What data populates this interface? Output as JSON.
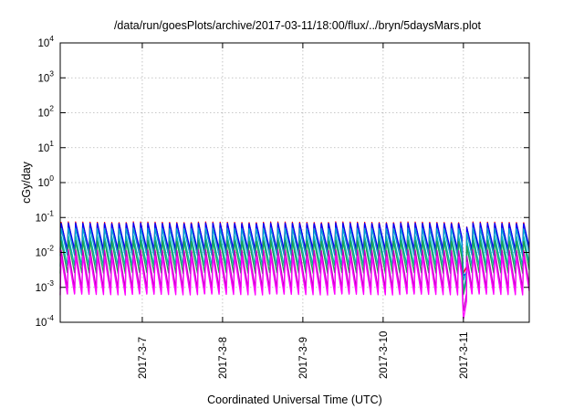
{
  "chart_data": {
    "type": "line",
    "title": "/data/run/goesPlots/archive/2017-03-11/18:00/flux/../bryn/5daysMars.plot",
    "xlabel": "Coordinated Universal Time (UTC)",
    "ylabel": "cGy/day",
    "y_scale": "log",
    "ylim": [
      0.0001,
      10000
    ],
    "x_range_days": [
      5.978,
      11.82
    ],
    "grid": true,
    "legend": "none",
    "y_ticks": [
      {
        "value": 0.0001,
        "base": "10",
        "exp": "-4"
      },
      {
        "value": 0.001,
        "base": "10",
        "exp": "-3"
      },
      {
        "value": 0.01,
        "base": "10",
        "exp": "-2"
      },
      {
        "value": 0.1,
        "base": "10",
        "exp": "-1"
      },
      {
        "value": 1,
        "base": "10",
        "exp": "0"
      },
      {
        "value": 10,
        "base": "10",
        "exp": "1"
      },
      {
        "value": 100,
        "base": "10",
        "exp": "2"
      },
      {
        "value": 1000,
        "base": "10",
        "exp": "3"
      },
      {
        "value": 10000,
        "base": "10",
        "exp": "4"
      }
    ],
    "x_ticks": [
      {
        "day": 7,
        "label": "2017-3-7"
      },
      {
        "day": 8,
        "label": "2017-3-8"
      },
      {
        "day": 9,
        "label": "2017-3-9"
      },
      {
        "day": 10,
        "label": "2017-3-10"
      },
      {
        "day": 11,
        "label": "2017-3-11"
      }
    ],
    "oscillation_period_days": 0.09,
    "dip": {
      "start_day": 10.98,
      "min_day": 11.0,
      "end_day": 11.04
    },
    "series": [
      {
        "color": "#ff0000",
        "peak": 0.075,
        "trough": 0.01,
        "dip_min": 0.0025,
        "post_dip": 0.004
      },
      {
        "color": "#0000ff",
        "peak": 0.07,
        "trough": 0.012,
        "dip_min": 0.0022,
        "post_dip": 0.0025
      },
      {
        "color": "#00a0d8",
        "peak": 0.05,
        "trough": 0.008,
        "dip_min": 0.0016,
        "post_dip": 0.003
      },
      {
        "color": "#00b4b4",
        "peak": 0.03,
        "trough": 0.004,
        "dip_min": 0.0008,
        "post_dip": 0.0024
      },
      {
        "color": "#20a050",
        "peak": 0.022,
        "trough": 0.0025,
        "dip_min": 0.0006,
        "post_dip": 0.0018
      },
      {
        "color": "#c000c0",
        "peak": 0.012,
        "trough": 0.0009,
        "dip_min": 0.0002,
        "post_dip": 0.0007
      },
      {
        "color": "#ff00ff",
        "peak": 0.008,
        "trough": 0.0006,
        "dip_min": 0.00012,
        "post_dip": 0.0004
      }
    ]
  }
}
